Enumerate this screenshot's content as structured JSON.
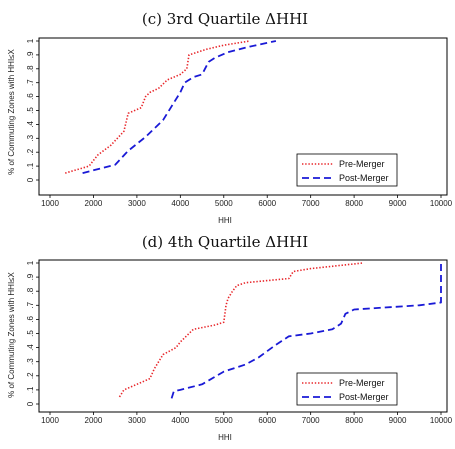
{
  "chart_data": [
    {
      "type": "line",
      "title": "(c) 3rd Quartile ΔHHI",
      "xlabel": "HHI",
      "ylabel": "% of Commuting Zones with HHI≤X",
      "xlim": [
        1000,
        10000
      ],
      "ylim": [
        0,
        1
      ],
      "xticks": [
        "1000",
        "2000",
        "3000",
        "4000",
        "5000",
        "6000",
        "7000",
        "8000",
        "9000",
        "10000"
      ],
      "yticks": [
        "0",
        ".1",
        ".2",
        ".3",
        ".4",
        ".5",
        ".6",
        ".7",
        ".8",
        ".9",
        "1"
      ],
      "legend_position": "bottom-right",
      "series": [
        {
          "name": "Pre-Merger",
          "color": "#e8262a",
          "style": "dotted",
          "x": [
            1350,
            1900,
            2000,
            2100,
            2400,
            2700,
            2800,
            3100,
            3200,
            3300,
            3500,
            3700,
            4000,
            4150,
            4200,
            4300,
            4600,
            5000,
            5600
          ],
          "y": [
            0.05,
            0.1,
            0.14,
            0.18,
            0.25,
            0.35,
            0.48,
            0.52,
            0.6,
            0.63,
            0.66,
            0.72,
            0.76,
            0.8,
            0.9,
            0.91,
            0.94,
            0.97,
            1.0
          ]
        },
        {
          "name": "Post-Merger",
          "color": "#1a1ad6",
          "style": "dashed",
          "x": [
            1750,
            2000,
            2500,
            2800,
            3200,
            3600,
            3800,
            4000,
            4100,
            4300,
            4500,
            4650,
            4800,
            5100,
            5600,
            6200
          ],
          "y": [
            0.05,
            0.07,
            0.11,
            0.21,
            0.31,
            0.43,
            0.53,
            0.63,
            0.7,
            0.74,
            0.76,
            0.85,
            0.88,
            0.92,
            0.96,
            1.0
          ]
        }
      ]
    },
    {
      "type": "line",
      "title": "(d) 4th Quartile ΔHHI",
      "xlabel": "HHI",
      "ylabel": "% of Commuting Zones with HHI≤X",
      "xlim": [
        1000,
        10000
      ],
      "ylim": [
        0,
        1
      ],
      "xticks": [
        "1000",
        "2000",
        "3000",
        "4000",
        "5000",
        "6000",
        "7000",
        "8000",
        "9000",
        "10000"
      ],
      "yticks": [
        "0",
        ".1",
        ".2",
        ".3",
        ".4",
        ".5",
        ".6",
        ".7",
        ".8",
        ".9",
        "1"
      ],
      "legend_position": "bottom-right",
      "series": [
        {
          "name": "Pre-Merger",
          "color": "#e8262a",
          "style": "dotted",
          "x": [
            2600,
            2700,
            3000,
            3300,
            3400,
            3600,
            3900,
            4000,
            4200,
            4300,
            4800,
            5000,
            5050,
            5100,
            5200,
            5300,
            5500,
            6500,
            6600,
            7000,
            8200
          ],
          "y": [
            0.05,
            0.1,
            0.14,
            0.18,
            0.25,
            0.35,
            0.4,
            0.44,
            0.5,
            0.53,
            0.56,
            0.58,
            0.7,
            0.75,
            0.8,
            0.84,
            0.86,
            0.89,
            0.94,
            0.96,
            1.0
          ]
        },
        {
          "name": "Post-Merger",
          "color": "#1a1ad6",
          "style": "dashed",
          "x": [
            3800,
            3850,
            4000,
            4500,
            5000,
            5500,
            5800,
            6200,
            6500,
            7000,
            7500,
            7700,
            7800,
            8000,
            9500,
            10000,
            10000
          ],
          "y": [
            0.04,
            0.09,
            0.1,
            0.14,
            0.23,
            0.28,
            0.33,
            0.42,
            0.48,
            0.5,
            0.53,
            0.57,
            0.64,
            0.67,
            0.7,
            0.72,
            1.0
          ]
        }
      ]
    }
  ]
}
